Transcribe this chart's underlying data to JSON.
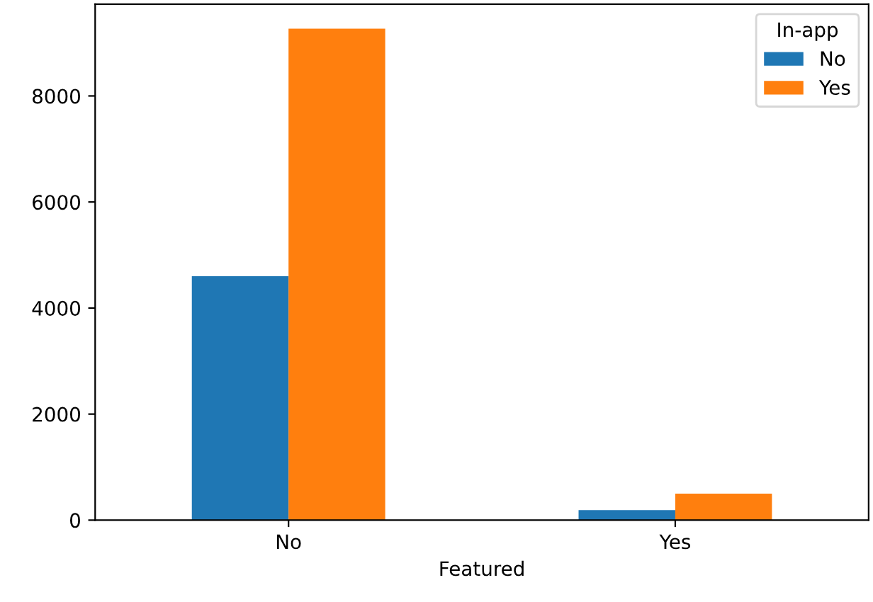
{
  "chart_data": {
    "type": "bar",
    "xlabel": "Featured",
    "legend_title": "In-app",
    "legend": "top right",
    "categories": [
      "No",
      "Yes"
    ],
    "series": [
      {
        "name": "No",
        "color": "#1f77b4",
        "values": [
          4600,
          190
        ]
      },
      {
        "name": "Yes",
        "color": "#ff7f0e",
        "values": [
          9270,
          500
        ]
      }
    ],
    "ylim": [
      0,
      9730
    ],
    "yticks": [
      0,
      2000,
      4000,
      6000,
      8000
    ],
    "grid": false
  }
}
